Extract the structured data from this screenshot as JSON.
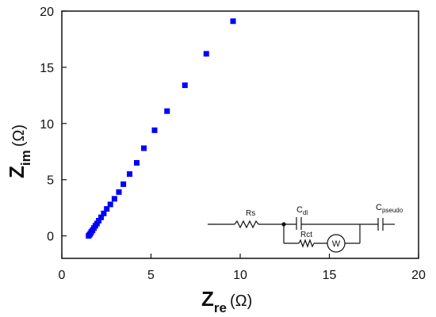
{
  "chart_data": {
    "type": "scatter",
    "x_axis": {
      "label_main": "Z",
      "label_sub": "re",
      "label_unit": "(Ω)",
      "range": [
        0,
        20
      ],
      "ticks": [
        0,
        5,
        10,
        15,
        20
      ]
    },
    "y_axis": {
      "label_main": "Z",
      "label_sub": "im",
      "label_unit": "(Ω)",
      "range": [
        -2,
        20
      ],
      "ticks": [
        0,
        5,
        10,
        15,
        20
      ]
    },
    "grid": false,
    "marker": "square",
    "color": "#0000ff",
    "points": [
      {
        "x": 1.5,
        "y": 0.0
      },
      {
        "x": 1.55,
        "y": 0.1
      },
      {
        "x": 1.6,
        "y": 0.2
      },
      {
        "x": 1.65,
        "y": 0.35
      },
      {
        "x": 1.72,
        "y": 0.5
      },
      {
        "x": 1.8,
        "y": 0.7
      },
      {
        "x": 1.88,
        "y": 0.9
      },
      {
        "x": 1.97,
        "y": 1.1
      },
      {
        "x": 2.07,
        "y": 1.35
      },
      {
        "x": 2.2,
        "y": 1.65
      },
      {
        "x": 2.35,
        "y": 2.0
      },
      {
        "x": 2.52,
        "y": 2.4
      },
      {
        "x": 2.72,
        "y": 2.8
      },
      {
        "x": 2.95,
        "y": 3.3
      },
      {
        "x": 3.2,
        "y": 3.9
      },
      {
        "x": 3.45,
        "y": 4.6
      },
      {
        "x": 3.8,
        "y": 5.5
      },
      {
        "x": 4.2,
        "y": 6.5
      },
      {
        "x": 4.6,
        "y": 7.8
      },
      {
        "x": 5.2,
        "y": 9.4
      },
      {
        "x": 5.9,
        "y": 11.1
      },
      {
        "x": 6.9,
        "y": 13.4
      },
      {
        "x": 8.1,
        "y": 16.2
      },
      {
        "x": 9.6,
        "y": 19.1
      }
    ]
  },
  "circuit": {
    "rs_label": "Rs",
    "cdl_main": "C",
    "cdl_sub": "dl",
    "rct_label": "Rct",
    "w_label": "W",
    "cpseudo_main": "C",
    "cpseudo_sub": "pseudo"
  }
}
